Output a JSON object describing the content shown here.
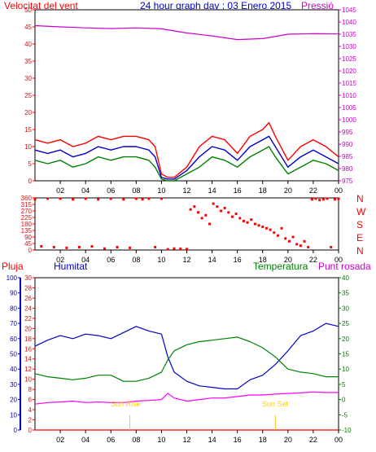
{
  "chart_data": [
    {
      "type": "line",
      "title": "24 hour graph day : 03 Enero 2015",
      "left_label": "Velocitat del vent",
      "right_label": "Pressió",
      "x_ticks": [
        "02",
        "04",
        "06",
        "08",
        "10",
        "12",
        "14",
        "16",
        "18",
        "20",
        "22",
        "00"
      ],
      "x_range": [
        0,
        24
      ],
      "y_left": {
        "range": [
          0,
          50
        ],
        "ticks": [
          "0",
          "5",
          "10",
          "15",
          "20",
          "25",
          "30",
          "35",
          "40",
          "45",
          "50"
        ]
      },
      "y_right": {
        "range": [
          975,
          1045
        ],
        "ticks": [
          "975",
          "980",
          "985",
          "990",
          "995",
          "1000",
          "1005",
          "1010",
          "1015",
          "1020",
          "1025",
          "1030",
          "1035",
          "1040",
          "1045"
        ]
      },
      "series": [
        {
          "color": "#ff0000",
          "axis": "left",
          "x": [
            0,
            1,
            2,
            3,
            4,
            5,
            6,
            7,
            8,
            9,
            9.5,
            10,
            10.5,
            11,
            12,
            13,
            14,
            15,
            16,
            17,
            18,
            18.5,
            19,
            20,
            21,
            22,
            23,
            24
          ],
          "values": [
            12,
            11,
            12,
            10,
            11,
            13,
            12,
            13,
            13,
            12,
            10,
            2,
            1,
            1,
            4,
            10,
            13,
            12,
            8,
            13,
            15,
            17,
            13,
            6,
            10,
            12,
            10,
            7
          ]
        },
        {
          "color": "#0000cc",
          "axis": "left",
          "x": [
            0,
            1,
            2,
            3,
            4,
            5,
            6,
            7,
            8,
            9,
            9.5,
            10,
            10.5,
            11,
            12,
            13,
            14,
            15,
            16,
            17,
            18,
            18.5,
            19,
            20,
            21,
            22,
            23,
            24
          ],
          "values": [
            9,
            8,
            9,
            7,
            8,
            10,
            9,
            10,
            10,
            9,
            7,
            1,
            0.5,
            0.5,
            3,
            7,
            10,
            9,
            6,
            10,
            12,
            13,
            10,
            4,
            7,
            9,
            7,
            5
          ]
        },
        {
          "color": "#008000",
          "axis": "left",
          "x": [
            0,
            1,
            2,
            3,
            4,
            5,
            6,
            7,
            8,
            9,
            9.5,
            10,
            10.5,
            11,
            12,
            13,
            14,
            15,
            16,
            17,
            18,
            18.5,
            19,
            20,
            21,
            22,
            23,
            24
          ],
          "values": [
            6,
            5,
            6,
            4,
            5,
            7,
            6,
            7,
            7,
            6,
            4,
            0.5,
            0,
            0,
            2,
            4,
            7,
            6,
            4,
            7,
            9,
            10,
            7,
            2,
            4,
            6,
            5,
            3
          ]
        },
        {
          "color": "#cc00cc",
          "axis": "right",
          "x": [
            0,
            2,
            4,
            6,
            8,
            10,
            12,
            14,
            16,
            18,
            20,
            22,
            24
          ],
          "values": [
            1038.5,
            1038,
            1037.6,
            1037.3,
            1037.6,
            1037.2,
            1035.5,
            1034.3,
            1032.8,
            1033.2,
            1035,
            1035.2,
            1035.1
          ]
        }
      ]
    },
    {
      "type": "scatter",
      "x_ticks": [
        "02",
        "04",
        "06",
        "08",
        "10",
        "12",
        "14",
        "16",
        "18",
        "20",
        "22",
        "00"
      ],
      "x_range": [
        0,
        24
      ],
      "y_left": {
        "range": [
          0,
          360
        ],
        "ticks": [
          "0",
          "45",
          "90",
          "135",
          "180",
          "225",
          "270",
          "315",
          "360"
        ]
      },
      "direction_labels": [
        "N",
        "W",
        "S",
        "E",
        "N"
      ],
      "series": [
        {
          "color": "#ff0000",
          "x": [
            0,
            0.5,
            1,
            1.5,
            2,
            2.5,
            3,
            3.5,
            4,
            4.5,
            5,
            5.5,
            6,
            6.5,
            7,
            7.5,
            8,
            8.5,
            9,
            9.5,
            10,
            10.5,
            11,
            11.5,
            12,
            12.3,
            12.6,
            12.9,
            13.2,
            13.5,
            13.8,
            14.1,
            14.4,
            14.7,
            15,
            15.3,
            15.6,
            15.9,
            16.2,
            16.5,
            16.8,
            17.1,
            17.4,
            17.7,
            18,
            18.3,
            18.6,
            18.9,
            19.2,
            19.5,
            19.8,
            20.1,
            20.4,
            20.7,
            21,
            21.3,
            21.6,
            21.9,
            22.2,
            22.5,
            22.8,
            23.1,
            23.4,
            23.7,
            24
          ],
          "values": [
            350,
            25,
            355,
            20,
            355,
            15,
            350,
            20,
            355,
            25,
            350,
            10,
            355,
            20,
            350,
            15,
            355,
            350,
            355,
            20,
            355,
            5,
            10,
            8,
            6,
            280,
            300,
            260,
            220,
            240,
            180,
            320,
            300,
            270,
            290,
            260,
            230,
            250,
            220,
            200,
            190,
            210,
            180,
            170,
            160,
            150,
            140,
            120,
            100,
            150,
            80,
            60,
            90,
            40,
            30,
            60,
            20,
            350,
            355,
            345,
            350,
            355,
            20,
            350,
            355
          ]
        }
      ]
    },
    {
      "type": "line",
      "left_label_1": "Pluja",
      "left_label_2": "Humitat",
      "right_label_1": "Temperatura",
      "right_label_2": "Punt rosada",
      "x_ticks": [
        "02",
        "04",
        "06",
        "08",
        "10",
        "12",
        "14",
        "16",
        "18",
        "20",
        "22",
        "00"
      ],
      "x_range": [
        0,
        24
      ],
      "y_humidity": {
        "range": [
          0,
          100
        ],
        "ticks": [
          "0",
          "10",
          "20",
          "30",
          "40",
          "50",
          "60",
          "70",
          "80",
          "90",
          "100"
        ]
      },
      "y_rain": {
        "range": [
          0,
          30
        ],
        "ticks": [
          "0",
          "2",
          "4",
          "6",
          "8",
          "10",
          "12",
          "14",
          "16",
          "18",
          "20",
          "22",
          "24",
          "26",
          "28",
          "30"
        ]
      },
      "y_temperature": {
        "range": [
          -10,
          40
        ],
        "ticks": [
          "-10",
          "-5",
          "0",
          "5",
          "10",
          "15",
          "20",
          "25",
          "30",
          "35",
          "40"
        ]
      },
      "annotations": [
        "Sun Rise",
        "Sun Set"
      ],
      "series": [
        {
          "color": "#0000cc",
          "axis": "humidity",
          "x": [
            0,
            1,
            2,
            3,
            4,
            5,
            6,
            7,
            8,
            9,
            10,
            10.5,
            11,
            12,
            13,
            14,
            15,
            16,
            17,
            18,
            19,
            20,
            21,
            22,
            23,
            24
          ],
          "values": [
            55,
            59,
            62,
            60,
            63,
            62,
            60,
            64,
            68,
            65,
            63,
            48,
            38,
            32,
            29,
            28,
            27,
            27,
            33,
            36,
            43,
            52,
            62,
            65,
            70,
            68
          ]
        },
        {
          "color": "#008000",
          "axis": "temperature",
          "x": [
            0,
            1,
            2,
            3,
            4,
            5,
            6,
            7,
            8,
            9,
            10,
            10.5,
            11,
            12,
            13,
            14,
            15,
            16,
            17,
            18,
            19,
            20,
            21,
            22,
            23,
            24
          ],
          "values": [
            8.5,
            7.5,
            7,
            6.5,
            7,
            8,
            8,
            6,
            6,
            7,
            9,
            13,
            16,
            18,
            19,
            19.5,
            20,
            20.5,
            19,
            17,
            14,
            10,
            9,
            8.5,
            7.5,
            7.5
          ]
        },
        {
          "color": "#ff00ff",
          "axis": "temperature",
          "x": [
            0,
            1,
            2,
            3,
            4,
            5,
            6,
            7,
            8,
            9,
            10,
            10.5,
            11,
            12,
            13,
            14,
            15,
            16,
            17,
            18,
            19,
            20,
            21,
            22,
            23,
            24
          ],
          "values": [
            -1.5,
            -1,
            -0.8,
            -0.5,
            -1,
            -0.8,
            -1,
            -1,
            -0.5,
            -0.3,
            0,
            2,
            0.5,
            -0.5,
            0,
            0.5,
            0.5,
            1,
            1.5,
            1.5,
            1.8,
            2,
            2.2,
            2.5,
            2.3,
            2.3
          ]
        },
        {
          "color": "#ff0000",
          "axis": "rain",
          "x": [
            0,
            24
          ],
          "values": [
            0,
            0
          ]
        }
      ]
    }
  ]
}
